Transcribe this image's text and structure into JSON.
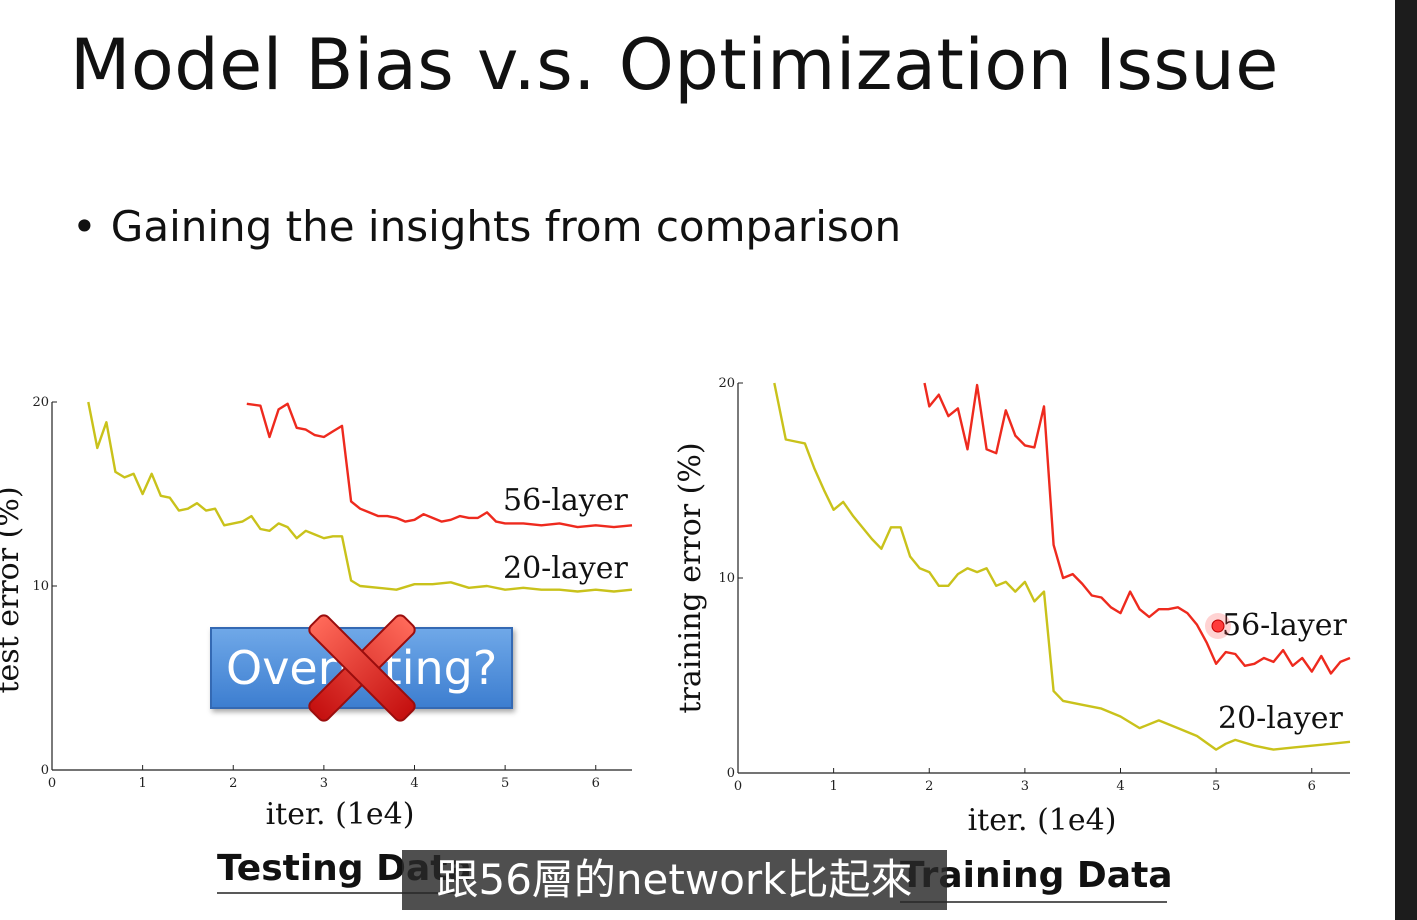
{
  "slide": {
    "title": "Model Bias v.s. Optimization Issue",
    "bullet": "Gaining the insights from comparison",
    "overlay_label": "Overfitting?",
    "subtitle": "跟56層的network比起來"
  },
  "colors": {
    "red_series": "#ee2a1e",
    "yellow_series": "#c9c21b",
    "overlay_blue": "#4a8ad9",
    "cross_red": "#e11b1b"
  },
  "chart_data": [
    {
      "type": "line",
      "panel_title": "Testing Data",
      "xlabel": "iter. (1e4)",
      "ylabel": "test error (%)",
      "xlim": [
        0,
        6.4
      ],
      "ylim": [
        0,
        20
      ],
      "xticks": [
        "0",
        "1",
        "2",
        "3",
        "4",
        "5",
        "6"
      ],
      "yticks": [
        "0",
        "10",
        "20"
      ],
      "grid": false,
      "series": [
        {
          "name": "56-layer",
          "color": "#ee2a1e",
          "x": [
            2.15,
            2.3,
            2.4,
            2.5,
            2.6,
            2.7,
            2.8,
            2.9,
            3.0,
            3.1,
            3.2,
            3.3,
            3.4,
            3.5,
            3.6,
            3.7,
            3.8,
            3.9,
            4.0,
            4.1,
            4.2,
            4.3,
            4.4,
            4.5,
            4.6,
            4.7,
            4.8,
            4.9,
            5.0,
            5.2,
            5.4,
            5.6,
            5.8,
            6.0,
            6.2,
            6.4
          ],
          "y": [
            19.9,
            19.8,
            18.1,
            19.6,
            19.9,
            18.6,
            18.5,
            18.2,
            18.1,
            18.4,
            18.7,
            14.6,
            14.2,
            14.0,
            13.8,
            13.8,
            13.7,
            13.5,
            13.6,
            13.9,
            13.7,
            13.5,
            13.6,
            13.8,
            13.7,
            13.7,
            14.0,
            13.5,
            13.4,
            13.4,
            13.3,
            13.4,
            13.2,
            13.3,
            13.2,
            13.3
          ]
        },
        {
          "name": "20-layer",
          "color": "#c9c21b",
          "x": [
            0.4,
            0.5,
            0.6,
            0.7,
            0.8,
            0.9,
            1.0,
            1.1,
            1.2,
            1.3,
            1.4,
            1.5,
            1.6,
            1.7,
            1.8,
            1.9,
            2.0,
            2.1,
            2.2,
            2.3,
            2.4,
            2.5,
            2.6,
            2.7,
            2.8,
            2.9,
            3.0,
            3.1,
            3.2,
            3.3,
            3.4,
            3.6,
            3.8,
            4.0,
            4.2,
            4.4,
            4.6,
            4.8,
            5.0,
            5.2,
            5.4,
            5.6,
            5.8,
            6.0,
            6.2,
            6.4
          ],
          "y": [
            20.0,
            17.5,
            18.9,
            16.2,
            15.9,
            16.1,
            15.0,
            16.1,
            14.9,
            14.8,
            14.1,
            14.2,
            14.5,
            14.1,
            14.2,
            13.3,
            13.4,
            13.5,
            13.8,
            13.1,
            13.0,
            13.4,
            13.2,
            12.6,
            13.0,
            12.8,
            12.6,
            12.7,
            12.7,
            10.3,
            10.0,
            9.9,
            9.8,
            10.1,
            10.1,
            10.2,
            9.9,
            10.0,
            9.8,
            9.9,
            9.8,
            9.8,
            9.7,
            9.8,
            9.7,
            9.8
          ]
        }
      ]
    },
    {
      "type": "line",
      "panel_title": "Training Data",
      "xlabel": "iter. (1e4)",
      "ylabel": "training error (%)",
      "xlim": [
        0,
        6.4
      ],
      "ylim": [
        0,
        20
      ],
      "xticks": [
        "0",
        "1",
        "2",
        "3",
        "4",
        "5",
        "6"
      ],
      "yticks": [
        "0",
        "10",
        "20"
      ],
      "grid": false,
      "series": [
        {
          "name": "56-layer",
          "color": "#ee2a1e",
          "x": [
            1.95,
            2.0,
            2.1,
            2.2,
            2.3,
            2.4,
            2.5,
            2.6,
            2.7,
            2.8,
            2.9,
            3.0,
            3.1,
            3.2,
            3.3,
            3.4,
            3.5,
            3.6,
            3.7,
            3.8,
            3.9,
            4.0,
            4.1,
            4.2,
            4.3,
            4.4,
            4.5,
            4.6,
            4.7,
            4.8,
            4.9,
            5.0,
            5.1,
            5.2,
            5.3,
            5.4,
            5.5,
            5.6,
            5.7,
            5.8,
            5.9,
            6.0,
            6.1,
            6.2,
            6.3,
            6.4
          ],
          "y": [
            20.0,
            18.8,
            19.4,
            18.3,
            18.7,
            16.6,
            19.9,
            16.6,
            16.4,
            18.6,
            17.3,
            16.8,
            16.7,
            18.8,
            11.7,
            10.0,
            10.2,
            9.7,
            9.1,
            9.0,
            8.5,
            8.2,
            9.3,
            8.4,
            8.0,
            8.4,
            8.4,
            8.5,
            8.2,
            7.6,
            6.7,
            5.6,
            6.2,
            6.1,
            5.5,
            5.6,
            5.9,
            5.7,
            6.3,
            5.5,
            5.9,
            5.2,
            6.0,
            5.1,
            5.7,
            5.9
          ]
        },
        {
          "name": "20-layer",
          "color": "#c9c21b",
          "x": [
            0.38,
            0.5,
            0.6,
            0.7,
            0.8,
            0.9,
            1.0,
            1.1,
            1.2,
            1.3,
            1.4,
            1.5,
            1.6,
            1.7,
            1.8,
            1.9,
            2.0,
            2.1,
            2.2,
            2.3,
            2.4,
            2.5,
            2.6,
            2.7,
            2.8,
            2.9,
            3.0,
            3.1,
            3.2,
            3.3,
            3.4,
            3.6,
            3.8,
            4.0,
            4.2,
            4.4,
            4.6,
            4.8,
            5.0,
            5.1,
            5.2,
            5.4,
            5.6,
            5.8,
            6.0,
            6.2,
            6.4
          ],
          "y": [
            20.0,
            17.1,
            17.0,
            16.9,
            15.6,
            14.5,
            13.5,
            13.9,
            13.2,
            12.6,
            12.0,
            11.5,
            12.6,
            12.6,
            11.1,
            10.5,
            10.3,
            9.6,
            9.6,
            10.2,
            10.5,
            10.3,
            10.5,
            9.6,
            9.8,
            9.3,
            9.8,
            8.8,
            9.3,
            4.2,
            3.7,
            3.5,
            3.3,
            2.9,
            2.3,
            2.7,
            2.3,
            1.9,
            1.2,
            1.5,
            1.7,
            1.4,
            1.2,
            1.3,
            1.4,
            1.5,
            1.6
          ]
        }
      ]
    }
  ]
}
